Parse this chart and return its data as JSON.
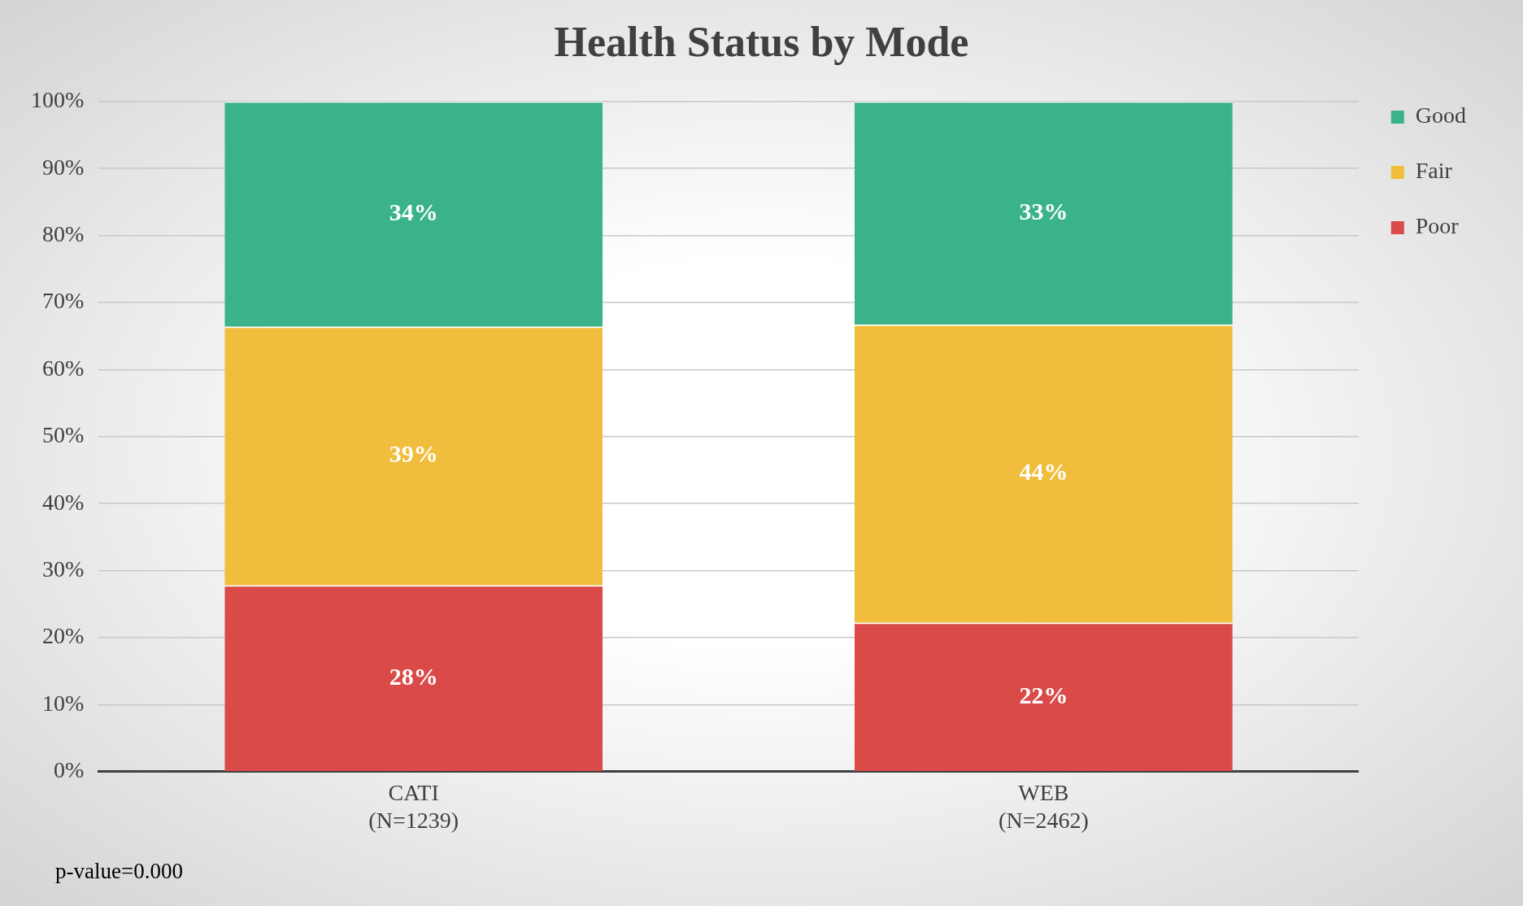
{
  "chart_data": {
    "type": "bar",
    "title": "Health Status by Mode",
    "categories": [
      "CATI\n(N=1239)",
      "WEB\n(N=2462)"
    ],
    "stacked": true,
    "series": [
      {
        "name": "Poor",
        "color": "#d94a48",
        "values": [
          27.8,
          22.2
        ],
        "value_labels": [
          "28%",
          "22%"
        ]
      },
      {
        "name": "Fair",
        "color": "#f0be3c",
        "values": [
          38.6,
          44.5
        ],
        "value_labels": [
          "39%",
          "44%"
        ]
      },
      {
        "name": "Good",
        "color": "#3bb389",
        "values": [
          33.6,
          33.3
        ],
        "value_labels": [
          "34%",
          "33%"
        ]
      }
    ],
    "ylim": [
      0,
      100
    ],
    "yticks": [
      {
        "value": 0,
        "label": "0%"
      },
      {
        "value": 10,
        "label": "10%"
      },
      {
        "value": 20,
        "label": "20%"
      },
      {
        "value": 30,
        "label": "30%"
      },
      {
        "value": 40,
        "label": "40%"
      },
      {
        "value": 50,
        "label": "50%"
      },
      {
        "value": 60,
        "label": "60%"
      },
      {
        "value": 70,
        "label": "70%"
      },
      {
        "value": 80,
        "label": "80%"
      },
      {
        "value": 90,
        "label": "90%"
      },
      {
        "value": 100,
        "label": "100%"
      }
    ],
    "grid": "y",
    "legend": "top right",
    "annotations": [
      "p-value=0.000"
    ]
  }
}
